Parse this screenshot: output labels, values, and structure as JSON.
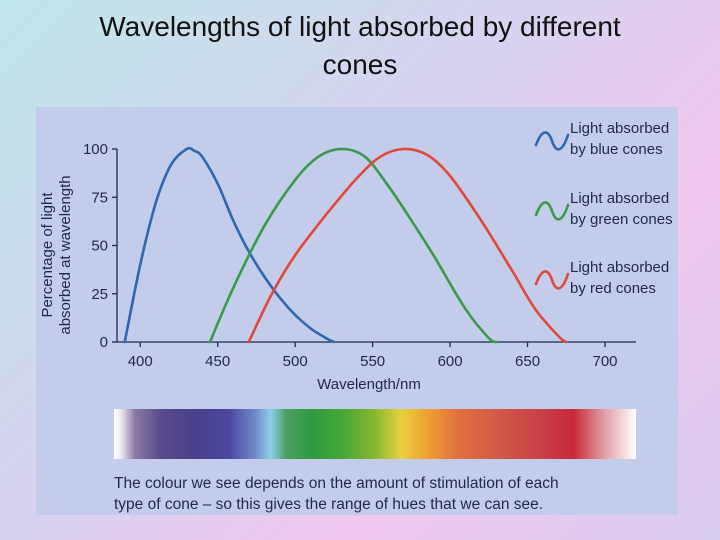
{
  "slide": {
    "title_line1": "Wavelengths of light absorbed by different",
    "title_line2": "cones"
  },
  "caption": {
    "line1": "The colour we see depends on the amount of stimulation of each",
    "line2": "type of cone – so this gives the range of hues that we can see."
  },
  "colors": {
    "blue_cone": "#2f67b0",
    "green_cone": "#3a9a4a",
    "red_cone": "#e0483a",
    "axis": "#1e2a4a",
    "panel_background": "#c3ccea"
  },
  "chart_data": {
    "type": "line",
    "xlabel": "Wavelength/nm",
    "ylabel_line1": "Percentage of light",
    "ylabel_line2": "absorbed at wavelength",
    "xlim": [
      385,
      720
    ],
    "ylim": [
      0,
      100
    ],
    "x_ticks": [
      "400",
      "450",
      "500",
      "550",
      "600",
      "650",
      "700"
    ],
    "y_ticks": [
      "0",
      "25",
      "50",
      "75",
      "100"
    ],
    "grid": false,
    "legend_position": "right",
    "series": [
      {
        "name_line1": "Light absorbed",
        "name_line2": "by blue cones",
        "color": "#2f67b0",
        "x": [
          390,
          400,
          410,
          420,
          430,
          435,
          440,
          450,
          460,
          470,
          480,
          490,
          500,
          510,
          520,
          525
        ],
        "y": [
          0,
          40,
          72,
          92,
          100,
          99,
          96,
          82,
          63,
          47,
          34,
          23,
          14,
          7,
          2,
          0
        ]
      },
      {
        "name_line1": "Light absorbed",
        "name_line2": "by green cones",
        "color": "#3a9a4a",
        "x": [
          445,
          460,
          480,
          500,
          515,
          530,
          545,
          560,
          575,
          590,
          610,
          625,
          630
        ],
        "y": [
          0,
          28,
          60,
          84,
          96,
          100,
          96,
          81,
          63,
          44,
          17,
          2,
          0
        ]
      },
      {
        "name_line1": "Light absorbed",
        "name_line2": "by red cones",
        "color": "#e0483a",
        "x": [
          470,
          485,
          500,
          520,
          540,
          555,
          570,
          585,
          600,
          620,
          640,
          655,
          670,
          675
        ],
        "y": [
          0,
          25,
          45,
          66,
          85,
          96,
          100,
          97,
          86,
          63,
          37,
          17,
          3,
          0
        ]
      }
    ]
  }
}
